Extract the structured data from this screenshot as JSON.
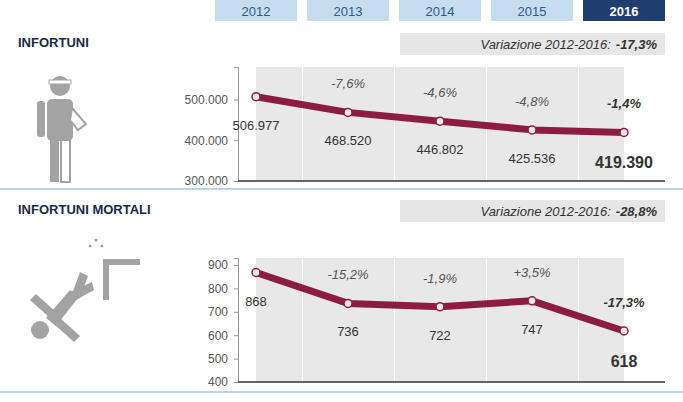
{
  "chart_data": [
    {
      "type": "line",
      "title": "INFORTUNI",
      "subtitle": "Variazione 2012-2016:",
      "subtitle_value": "-17,3%",
      "categories": [
        "2012",
        "2013",
        "2014",
        "2015",
        "2016"
      ],
      "values": [
        506977,
        468520,
        446802,
        425536,
        419390
      ],
      "value_labels": [
        "506.977",
        "468.520",
        "446.802",
        "425.536",
        "419.390"
      ],
      "variation_labels": [
        null,
        "-7,6%",
        "-4,6%",
        "-4,8%",
        "-1,4%"
      ],
      "color": "#8c1d40",
      "marker": "circle",
      "ylim": [
        300000,
        580000
      ],
      "yticks": [
        {
          "value": 300000,
          "label": "300.000"
        },
        {
          "value": 400000,
          "label": "400.000"
        },
        {
          "value": 500000,
          "label": "500.000"
        }
      ],
      "grid": false,
      "data_labels": true,
      "tick_labels": "y"
    },
    {
      "type": "line",
      "title": "INFORTUNI MORTALI",
      "subtitle": "Variazione 2012-2016:",
      "subtitle_value": "-28,8%",
      "categories": [
        "2012",
        "2013",
        "2014",
        "2015",
        "2016"
      ],
      "values": [
        868,
        736,
        722,
        747,
        618
      ],
      "variation_labels": [
        null,
        "-15,2%",
        "-1,9%",
        "+3,5%",
        "-17,3%"
      ],
      "color": "#8c1d40",
      "marker": "circle",
      "ylim": [
        400,
        930
      ],
      "yticks": [
        400,
        500,
        600,
        700,
        800,
        900
      ],
      "grid": false,
      "data_labels": true,
      "tick_labels": "y"
    }
  ]
}
